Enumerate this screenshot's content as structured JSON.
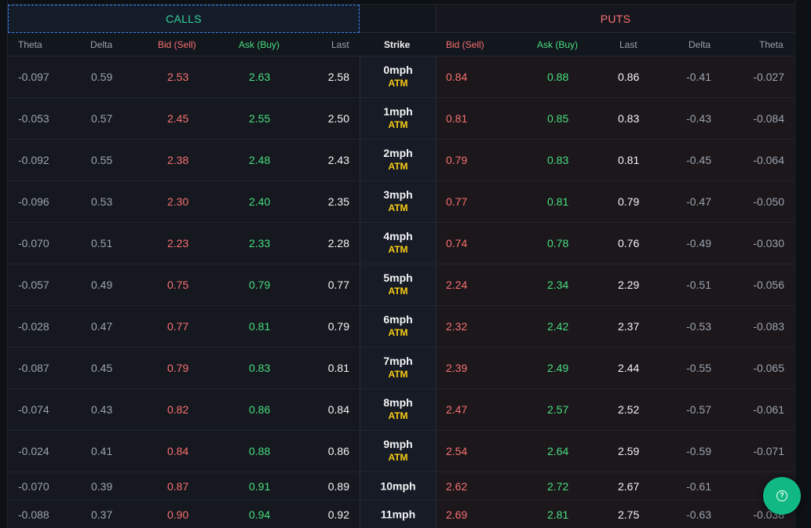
{
  "sections": {
    "calls": "CALLS",
    "puts": "PUTS"
  },
  "headers": {
    "theta_l": "Theta",
    "delta_l": "Delta",
    "bid_l": "Bid (Sell)",
    "ask_l": "Ask (Buy)",
    "last_l": "Last",
    "strike": "Strike",
    "bid_r": "Bid (Sell)",
    "ask_r": "Ask (Buy)",
    "last_r": "Last",
    "delta_r": "Delta",
    "theta_r": "Theta"
  },
  "rows": [
    {
      "c_theta": "-0.097",
      "c_delta": "0.59",
      "c_bid": "2.53",
      "c_ask": "2.63",
      "c_last": "2.58",
      "strike": "0mph",
      "tag": "ATM",
      "p_bid": "0.84",
      "p_ask": "0.88",
      "p_last": "0.86",
      "p_delta": "-0.41",
      "p_theta": "-0.027"
    },
    {
      "c_theta": "-0.053",
      "c_delta": "0.57",
      "c_bid": "2.45",
      "c_ask": "2.55",
      "c_last": "2.50",
      "strike": "1mph",
      "tag": "ATM",
      "p_bid": "0.81",
      "p_ask": "0.85",
      "p_last": "0.83",
      "p_delta": "-0.43",
      "p_theta": "-0.084"
    },
    {
      "c_theta": "-0.092",
      "c_delta": "0.55",
      "c_bid": "2.38",
      "c_ask": "2.48",
      "c_last": "2.43",
      "strike": "2mph",
      "tag": "ATM",
      "p_bid": "0.79",
      "p_ask": "0.83",
      "p_last": "0.81",
      "p_delta": "-0.45",
      "p_theta": "-0.064"
    },
    {
      "c_theta": "-0.096",
      "c_delta": "0.53",
      "c_bid": "2.30",
      "c_ask": "2.40",
      "c_last": "2.35",
      "strike": "3mph",
      "tag": "ATM",
      "p_bid": "0.77",
      "p_ask": "0.81",
      "p_last": "0.79",
      "p_delta": "-0.47",
      "p_theta": "-0.050"
    },
    {
      "c_theta": "-0.070",
      "c_delta": "0.51",
      "c_bid": "2.23",
      "c_ask": "2.33",
      "c_last": "2.28",
      "strike": "4mph",
      "tag": "ATM",
      "p_bid": "0.74",
      "p_ask": "0.78",
      "p_last": "0.76",
      "p_delta": "-0.49",
      "p_theta": "-0.030"
    },
    {
      "c_theta": "-0.057",
      "c_delta": "0.49",
      "c_bid": "0.75",
      "c_ask": "0.79",
      "c_last": "0.77",
      "strike": "5mph",
      "tag": "ATM",
      "p_bid": "2.24",
      "p_ask": "2.34",
      "p_last": "2.29",
      "p_delta": "-0.51",
      "p_theta": "-0.056"
    },
    {
      "c_theta": "-0.028",
      "c_delta": "0.47",
      "c_bid": "0.77",
      "c_ask": "0.81",
      "c_last": "0.79",
      "strike": "6mph",
      "tag": "ATM",
      "p_bid": "2.32",
      "p_ask": "2.42",
      "p_last": "2.37",
      "p_delta": "-0.53",
      "p_theta": "-0.083"
    },
    {
      "c_theta": "-0.087",
      "c_delta": "0.45",
      "c_bid": "0.79",
      "c_ask": "0.83",
      "c_last": "0.81",
      "strike": "7mph",
      "tag": "ATM",
      "p_bid": "2.39",
      "p_ask": "2.49",
      "p_last": "2.44",
      "p_delta": "-0.55",
      "p_theta": "-0.065"
    },
    {
      "c_theta": "-0.074",
      "c_delta": "0.43",
      "c_bid": "0.82",
      "c_ask": "0.86",
      "c_last": "0.84",
      "strike": "8mph",
      "tag": "ATM",
      "p_bid": "2.47",
      "p_ask": "2.57",
      "p_last": "2.52",
      "p_delta": "-0.57",
      "p_theta": "-0.061"
    },
    {
      "c_theta": "-0.024",
      "c_delta": "0.41",
      "c_bid": "0.84",
      "c_ask": "0.88",
      "c_last": "0.86",
      "strike": "9mph",
      "tag": "ATM",
      "p_bid": "2.54",
      "p_ask": "2.64",
      "p_last": "2.59",
      "p_delta": "-0.59",
      "p_theta": "-0.071"
    },
    {
      "c_theta": "-0.070",
      "c_delta": "0.39",
      "c_bid": "0.87",
      "c_ask": "0.91",
      "c_last": "0.89",
      "strike": "10mph",
      "tag": "",
      "p_bid": "2.62",
      "p_ask": "2.72",
      "p_last": "2.67",
      "p_delta": "-0.61",
      "p_theta": "-0.0"
    },
    {
      "c_theta": "-0.088",
      "c_delta": "0.37",
      "c_bid": "0.90",
      "c_ask": "0.94",
      "c_last": "0.92",
      "strike": "11mph",
      "tag": "",
      "p_bid": "2.69",
      "p_ask": "2.81",
      "p_last": "2.75",
      "p_delta": "-0.63",
      "p_theta": "-0.038"
    }
  ],
  "help": {
    "icon": "help-circle-icon",
    "glyph": "?"
  },
  "colors": {
    "accent_green": "#10b981",
    "call_green": "#4ade80",
    "put_red": "#f87171",
    "atm_yellow": "#facc15"
  }
}
